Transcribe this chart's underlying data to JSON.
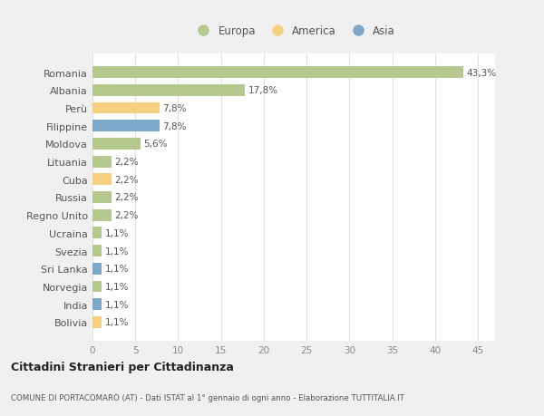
{
  "countries": [
    "Romania",
    "Albania",
    "Perù",
    "Filippine",
    "Moldova",
    "Lituania",
    "Cuba",
    "Russia",
    "Regno Unito",
    "Ucraina",
    "Svezia",
    "Sri Lanka",
    "Norvegia",
    "India",
    "Bolivia"
  ],
  "values": [
    43.3,
    17.8,
    7.8,
    7.8,
    5.6,
    2.2,
    2.2,
    2.2,
    2.2,
    1.1,
    1.1,
    1.1,
    1.1,
    1.1,
    1.1
  ],
  "continents": [
    "Europa",
    "Europa",
    "America",
    "Asia",
    "Europa",
    "Europa",
    "America",
    "Europa",
    "Europa",
    "Europa",
    "Europa",
    "Asia",
    "Europa",
    "Asia",
    "America"
  ],
  "continent_colors": {
    "Europa": "#b5c98e",
    "America": "#f5d080",
    "Asia": "#7ea8c9"
  },
  "labels": [
    "43,3%",
    "17,8%",
    "7,8%",
    "7,8%",
    "5,6%",
    "2,2%",
    "2,2%",
    "2,2%",
    "2,2%",
    "1,1%",
    "1,1%",
    "1,1%",
    "1,1%",
    "1,1%",
    "1,1%"
  ],
  "title": "Cittadini Stranieri per Cittadinanza",
  "subtitle": "COMUNE DI PORTACOMARO (AT) - Dati ISTAT al 1° gennaio di ogni anno - Elaborazione TUTTITALIA.IT",
  "xlim": [
    0,
    47
  ],
  "xticks": [
    0,
    5,
    10,
    15,
    20,
    25,
    30,
    35,
    40,
    45
  ],
  "plot_bg_color": "#ffffff",
  "outer_bg_color": "#f0f0f0",
  "legend_items": [
    "Europa",
    "America",
    "Asia"
  ],
  "legend_marker_colors": [
    "#b5c98e",
    "#f5d080",
    "#7ea8c9"
  ]
}
